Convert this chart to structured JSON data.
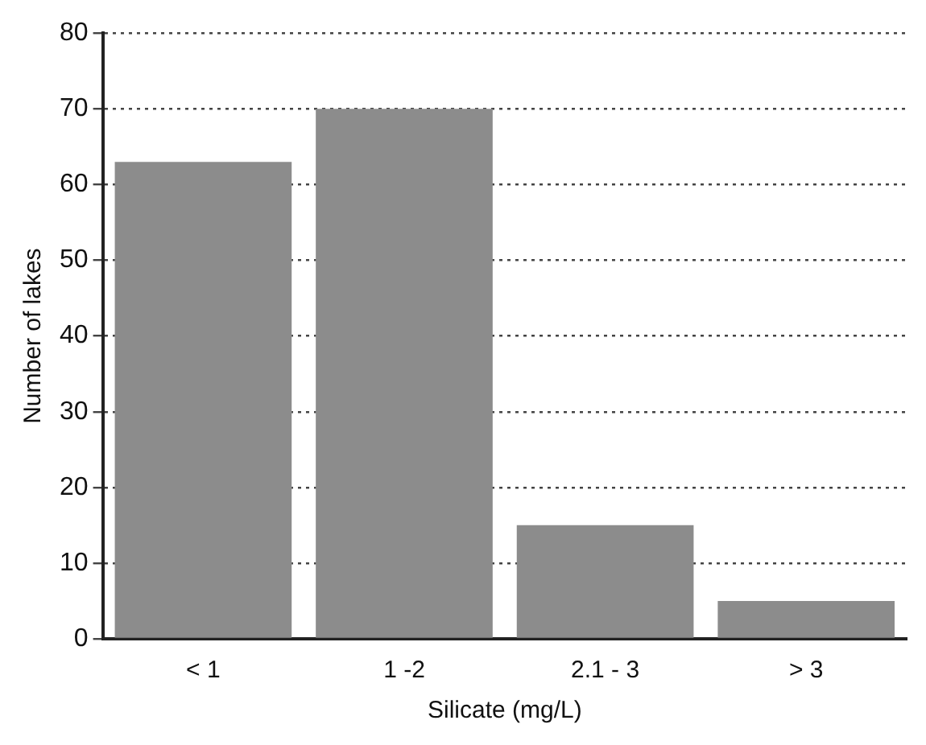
{
  "chart_data": {
    "type": "bar",
    "xlabel": "Silicate (mg/L)",
    "ylabel": "Number of lakes",
    "categories": [
      "< 1",
      "1 -2",
      "2.1 - 3",
      "> 3"
    ],
    "values": [
      63,
      70,
      15,
      5
    ],
    "color": "#8c8c8c",
    "ylim": [
      0,
      80
    ],
    "yticks": [
      0,
      10,
      20,
      30,
      40,
      50,
      60,
      70,
      80
    ],
    "grid": "y"
  }
}
